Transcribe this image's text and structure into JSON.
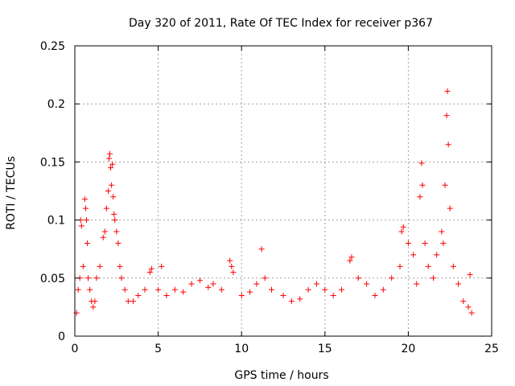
{
  "chart_data": {
    "type": "scatter",
    "title": "Day 320 of 2011, Rate Of TEC Index for receiver p367",
    "xlabel": "GPS time / hours",
    "ylabel": "ROTI / TECUs",
    "xlim": [
      0,
      25
    ],
    "ylim": [
      0,
      0.25
    ],
    "x_ticks": [
      "0",
      "5",
      "10",
      "15",
      "20",
      "25"
    ],
    "y_ticks": [
      "0",
      "0.05",
      "0.1",
      "0.15",
      "0.2",
      "0.25"
    ],
    "grid": true,
    "marker": "plus",
    "colors": {
      "points": "#ff0000",
      "grid": "#a0a0a0",
      "axes": "#000000"
    },
    "series": [
      {
        "x": [
          0.1,
          0.2,
          0.3,
          0.35,
          0.4,
          0.5,
          0.6,
          0.65,
          0.7,
          0.75,
          0.8,
          0.9,
          1.0,
          1.1,
          1.2,
          1.3,
          1.5,
          1.7,
          1.8,
          1.9,
          2.0,
          2.05,
          2.1,
          2.15,
          2.2,
          2.25,
          2.3,
          2.35,
          2.4,
          2.5,
          2.6,
          2.7,
          2.8,
          3.0,
          3.2,
          3.5,
          3.8,
          4.2,
          4.5,
          4.6,
          5.0,
          5.2,
          5.5,
          6.0,
          6.5,
          7.0,
          7.5,
          8.0,
          8.3,
          8.8,
          9.3,
          9.4,
          9.5,
          10.0,
          10.5,
          10.9,
          11.2,
          11.4,
          11.8,
          12.5,
          13.0,
          13.5,
          14.0,
          14.5,
          15.0,
          15.5,
          16.0,
          16.5,
          16.6,
          17.0,
          17.5,
          18.0,
          18.5,
          19.0,
          19.5,
          19.6,
          19.7,
          20.0,
          20.3,
          20.5,
          20.7,
          20.8,
          20.85,
          21.0,
          21.2,
          21.5,
          21.7,
          22.0,
          22.1,
          22.2,
          22.3,
          22.35,
          22.4,
          22.5,
          22.7,
          23.0,
          23.3,
          23.6,
          23.7,
          23.8
        ],
        "y": [
          0.02,
          0.04,
          0.05,
          0.1,
          0.095,
          0.06,
          0.118,
          0.11,
          0.1,
          0.08,
          0.05,
          0.04,
          0.03,
          0.025,
          0.03,
          0.05,
          0.06,
          0.085,
          0.09,
          0.11,
          0.125,
          0.153,
          0.157,
          0.145,
          0.13,
          0.148,
          0.12,
          0.105,
          0.1,
          0.09,
          0.08,
          0.06,
          0.05,
          0.04,
          0.03,
          0.03,
          0.035,
          0.04,
          0.055,
          0.058,
          0.04,
          0.06,
          0.035,
          0.04,
          0.038,
          0.045,
          0.048,
          0.042,
          0.045,
          0.04,
          0.065,
          0.06,
          0.055,
          0.035,
          0.038,
          0.045,
          0.075,
          0.05,
          0.04,
          0.035,
          0.03,
          0.032,
          0.04,
          0.045,
          0.04,
          0.035,
          0.04,
          0.065,
          0.068,
          0.05,
          0.045,
          0.035,
          0.04,
          0.05,
          0.06,
          0.09,
          0.094,
          0.08,
          0.07,
          0.045,
          0.12,
          0.149,
          0.13,
          0.08,
          0.06,
          0.05,
          0.07,
          0.09,
          0.08,
          0.13,
          0.19,
          0.211,
          0.165,
          0.11,
          0.06,
          0.045,
          0.03,
          0.025,
          0.053,
          0.02
        ]
      }
    ]
  }
}
